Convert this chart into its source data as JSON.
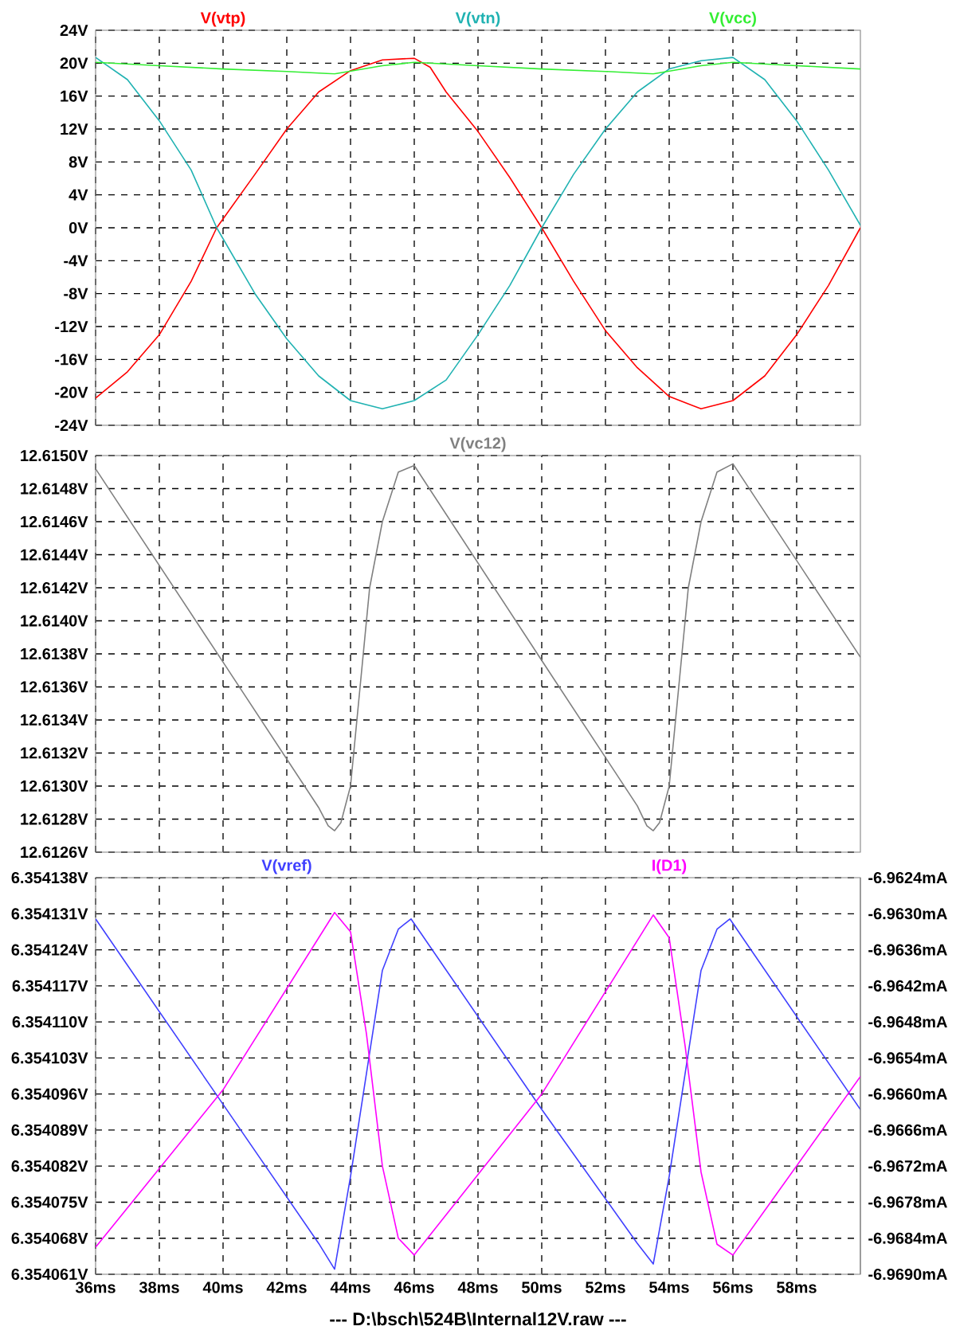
{
  "chart_data": [
    {
      "type": "line",
      "xlim": [
        36,
        60
      ],
      "ylim": [
        -24,
        24
      ],
      "xticks": [
        {
          "value": 36,
          "label": null
        },
        {
          "value": 38,
          "label": null
        },
        {
          "value": 40,
          "label": null
        },
        {
          "value": 42,
          "label": null
        },
        {
          "value": 44,
          "label": null
        },
        {
          "value": 46,
          "label": null
        },
        {
          "value": 48,
          "label": null
        },
        {
          "value": 50,
          "label": null
        },
        {
          "value": 52,
          "label": null
        },
        {
          "value": 54,
          "label": null
        },
        {
          "value": 56,
          "label": null
        },
        {
          "value": 58,
          "label": null
        }
      ],
      "yticks": [
        {
          "value": 24,
          "label": "24V"
        },
        {
          "value": 20,
          "label": "20V"
        },
        {
          "value": 16,
          "label": "16V"
        },
        {
          "value": 12,
          "label": "12V"
        },
        {
          "value": 8,
          "label": "8V"
        },
        {
          "value": 4,
          "label": "4V"
        },
        {
          "value": 0,
          "label": "0V"
        },
        {
          "value": -4,
          "label": "-4V"
        },
        {
          "value": -8,
          "label": "-8V"
        },
        {
          "value": -12,
          "label": "-12V"
        },
        {
          "value": -16,
          "label": "-16V"
        },
        {
          "value": -20,
          "label": "-20V"
        },
        {
          "value": -24,
          "label": "-24V"
        }
      ],
      "grid": true,
      "legend": "top",
      "tick_labels": "y",
      "series": [
        {
          "name": "V(vtp)",
          "color": "#ff0000",
          "x": [
            36,
            37,
            38,
            39,
            39.8,
            41,
            42,
            43,
            44,
            45,
            46,
            46.5,
            47,
            48,
            49,
            50,
            51,
            52,
            53,
            54,
            55,
            56,
            57,
            58,
            59,
            60
          ],
          "values": [
            -20.7,
            -17.5,
            -13,
            -6.5,
            0,
            6.5,
            12,
            16.5,
            19.1,
            20.4,
            20.6,
            19.5,
            16.5,
            11.7,
            6.1,
            0,
            -6.5,
            -12.5,
            -17,
            -20.5,
            -22,
            -21,
            -18,
            -13,
            -7,
            0
          ]
        },
        {
          "name": "V(vtn)",
          "color": "#20b2b2",
          "x": [
            36,
            37,
            38,
            39,
            39.8,
            41,
            42,
            43,
            44,
            45,
            46,
            47,
            48,
            49,
            50,
            51,
            52,
            53,
            54,
            55,
            56,
            57,
            58,
            59,
            60
          ],
          "values": [
            20.7,
            18,
            13,
            7,
            0,
            -8,
            -13.5,
            -18,
            -21,
            -22,
            -21,
            -18.5,
            -13,
            -7,
            0,
            6.5,
            12,
            16.5,
            19.3,
            20.3,
            20.7,
            18,
            13,
            7,
            0.3
          ]
        },
        {
          "name": "V(vcc)",
          "color": "#33ee33",
          "x": [
            36,
            38,
            40,
            42,
            43.5,
            45,
            46,
            48,
            50,
            52,
            53.5,
            55,
            56,
            58,
            60
          ],
          "values": [
            20.1,
            19.7,
            19.3,
            19,
            18.7,
            19.7,
            20.1,
            19.7,
            19.3,
            19,
            18.7,
            19.7,
            20.1,
            19.7,
            19.3
          ]
        }
      ]
    },
    {
      "type": "line",
      "xlim": [
        36,
        60
      ],
      "ylim": [
        12.6126,
        12.615
      ],
      "xticks": [
        {
          "value": 36,
          "label": null
        },
        {
          "value": 38,
          "label": null
        },
        {
          "value": 40,
          "label": null
        },
        {
          "value": 42,
          "label": null
        },
        {
          "value": 44,
          "label": null
        },
        {
          "value": 46,
          "label": null
        },
        {
          "value": 48,
          "label": null
        },
        {
          "value": 50,
          "label": null
        },
        {
          "value": 52,
          "label": null
        },
        {
          "value": 54,
          "label": null
        },
        {
          "value": 56,
          "label": null
        },
        {
          "value": 58,
          "label": null
        }
      ],
      "yticks": [
        {
          "value": 12.615,
          "label": "12.6150V"
        },
        {
          "value": 12.6148,
          "label": "12.6148V"
        },
        {
          "value": 12.6146,
          "label": "12.6146V"
        },
        {
          "value": 12.6144,
          "label": "12.6144V"
        },
        {
          "value": 12.6142,
          "label": "12.6142V"
        },
        {
          "value": 12.614,
          "label": "12.6140V"
        },
        {
          "value": 12.6138,
          "label": "12.6138V"
        },
        {
          "value": 12.6136,
          "label": "12.6136V"
        },
        {
          "value": 12.6134,
          "label": "12.6134V"
        },
        {
          "value": 12.6132,
          "label": "12.6132V"
        },
        {
          "value": 12.613,
          "label": "12.6130V"
        },
        {
          "value": 12.6128,
          "label": "12.6128V"
        },
        {
          "value": 12.6126,
          "label": "12.6126V"
        }
      ],
      "grid": true,
      "legend": "top",
      "tick_labels": "y",
      "series": [
        {
          "name": "V(vc12)",
          "color": "#808080",
          "x": [
            36,
            40,
            43,
            43.3,
            43.5,
            43.7,
            44,
            44.3,
            44.6,
            45,
            45.5,
            46,
            50,
            53,
            53.3,
            53.5,
            53.7,
            54,
            54.3,
            54.6,
            55,
            55.5,
            56,
            60
          ],
          "values": [
            12.61492,
            12.61375,
            12.61287,
            12.61276,
            12.61273,
            12.61278,
            12.613,
            12.6136,
            12.6142,
            12.6146,
            12.6149,
            12.61494,
            12.61376,
            12.61288,
            12.61276,
            12.61273,
            12.61278,
            12.613,
            12.6136,
            12.6142,
            12.6146,
            12.6149,
            12.61495,
            12.61378
          ]
        }
      ]
    },
    {
      "type": "line",
      "xlim": [
        36,
        60
      ],
      "ylim": [
        6.354061,
        6.354138
      ],
      "y2lim": [
        -6.969,
        -6.9624
      ],
      "xticks": [
        {
          "value": 36,
          "label": "36ms"
        },
        {
          "value": 38,
          "label": "38ms"
        },
        {
          "value": 40,
          "label": "40ms"
        },
        {
          "value": 42,
          "label": "42ms"
        },
        {
          "value": 44,
          "label": "44ms"
        },
        {
          "value": 46,
          "label": "46ms"
        },
        {
          "value": 48,
          "label": "48ms"
        },
        {
          "value": 50,
          "label": "50ms"
        },
        {
          "value": 52,
          "label": "52ms"
        },
        {
          "value": 54,
          "label": "54ms"
        },
        {
          "value": 56,
          "label": "56ms"
        },
        {
          "value": 58,
          "label": "58ms"
        }
      ],
      "yticks": [
        {
          "value": 6.354138,
          "label": "6.354138V"
        },
        {
          "value": 6.354131,
          "label": "6.354131V"
        },
        {
          "value": 6.354124,
          "label": "6.354124V"
        },
        {
          "value": 6.354117,
          "label": "6.354117V"
        },
        {
          "value": 6.35411,
          "label": "6.354110V"
        },
        {
          "value": 6.354103,
          "label": "6.354103V"
        },
        {
          "value": 6.354096,
          "label": "6.354096V"
        },
        {
          "value": 6.354089,
          "label": "6.354089V"
        },
        {
          "value": 6.354082,
          "label": "6.354082V"
        },
        {
          "value": 6.354075,
          "label": "6.354075V"
        },
        {
          "value": 6.354068,
          "label": "6.354068V"
        },
        {
          "value": 6.354061,
          "label": "6.354061V"
        }
      ],
      "y2ticks": [
        {
          "value": -6.9624,
          "label": "-6.9624mA"
        },
        {
          "value": -6.963,
          "label": "-6.9630mA"
        },
        {
          "value": -6.9636,
          "label": "-6.9636mA"
        },
        {
          "value": -6.9642,
          "label": "-6.9642mA"
        },
        {
          "value": -6.9648,
          "label": "-6.9648mA"
        },
        {
          "value": -6.9654,
          "label": "-6.9654mA"
        },
        {
          "value": -6.966,
          "label": "-6.9660mA"
        },
        {
          "value": -6.9666,
          "label": "-6.9666mA"
        },
        {
          "value": -6.9672,
          "label": "-6.9672mA"
        },
        {
          "value": -6.9678,
          "label": "-6.9678mA"
        },
        {
          "value": -6.9684,
          "label": "-6.9684mA"
        },
        {
          "value": -6.969,
          "label": "-6.9690mA"
        }
      ],
      "grid": true,
      "legend": "top",
      "annotations": [
        "---  D:\\bsch\\524B\\Internal12V.raw  ---"
      ],
      "series": [
        {
          "name": "V(vref)",
          "color": "#4040ff",
          "x": [
            36,
            40,
            43,
            43.5,
            44,
            44.5,
            45,
            45.5,
            45.9,
            50,
            53,
            53.5,
            54,
            54.5,
            55,
            55.5,
            55.9,
            60
          ],
          "values": [
            6.35413,
            6.354094,
            6.354067,
            6.354062,
            6.35408,
            6.3541,
            6.35412,
            6.354128,
            6.35413,
            6.354093,
            6.354067,
            6.354063,
            6.35408,
            6.3541,
            6.35412,
            6.354128,
            6.35413,
            6.354093
          ]
        },
        {
          "name": "I(D1)",
          "color": "#ff00ff",
          "axis": "y2",
          "x": [
            36,
            40,
            43.5,
            44,
            44.5,
            45,
            45.5,
            46,
            50,
            53.5,
            54,
            54.5,
            55,
            55.5,
            56,
            60
          ],
          "values": [
            -6.96855,
            -6.96593,
            -6.96298,
            -6.9633,
            -6.965,
            -6.9672,
            -6.9684,
            -6.96868,
            -6.966,
            -6.96302,
            -6.9634,
            -6.9652,
            -6.9673,
            -6.9685,
            -6.96868,
            -6.96571
          ]
        }
      ]
    }
  ]
}
